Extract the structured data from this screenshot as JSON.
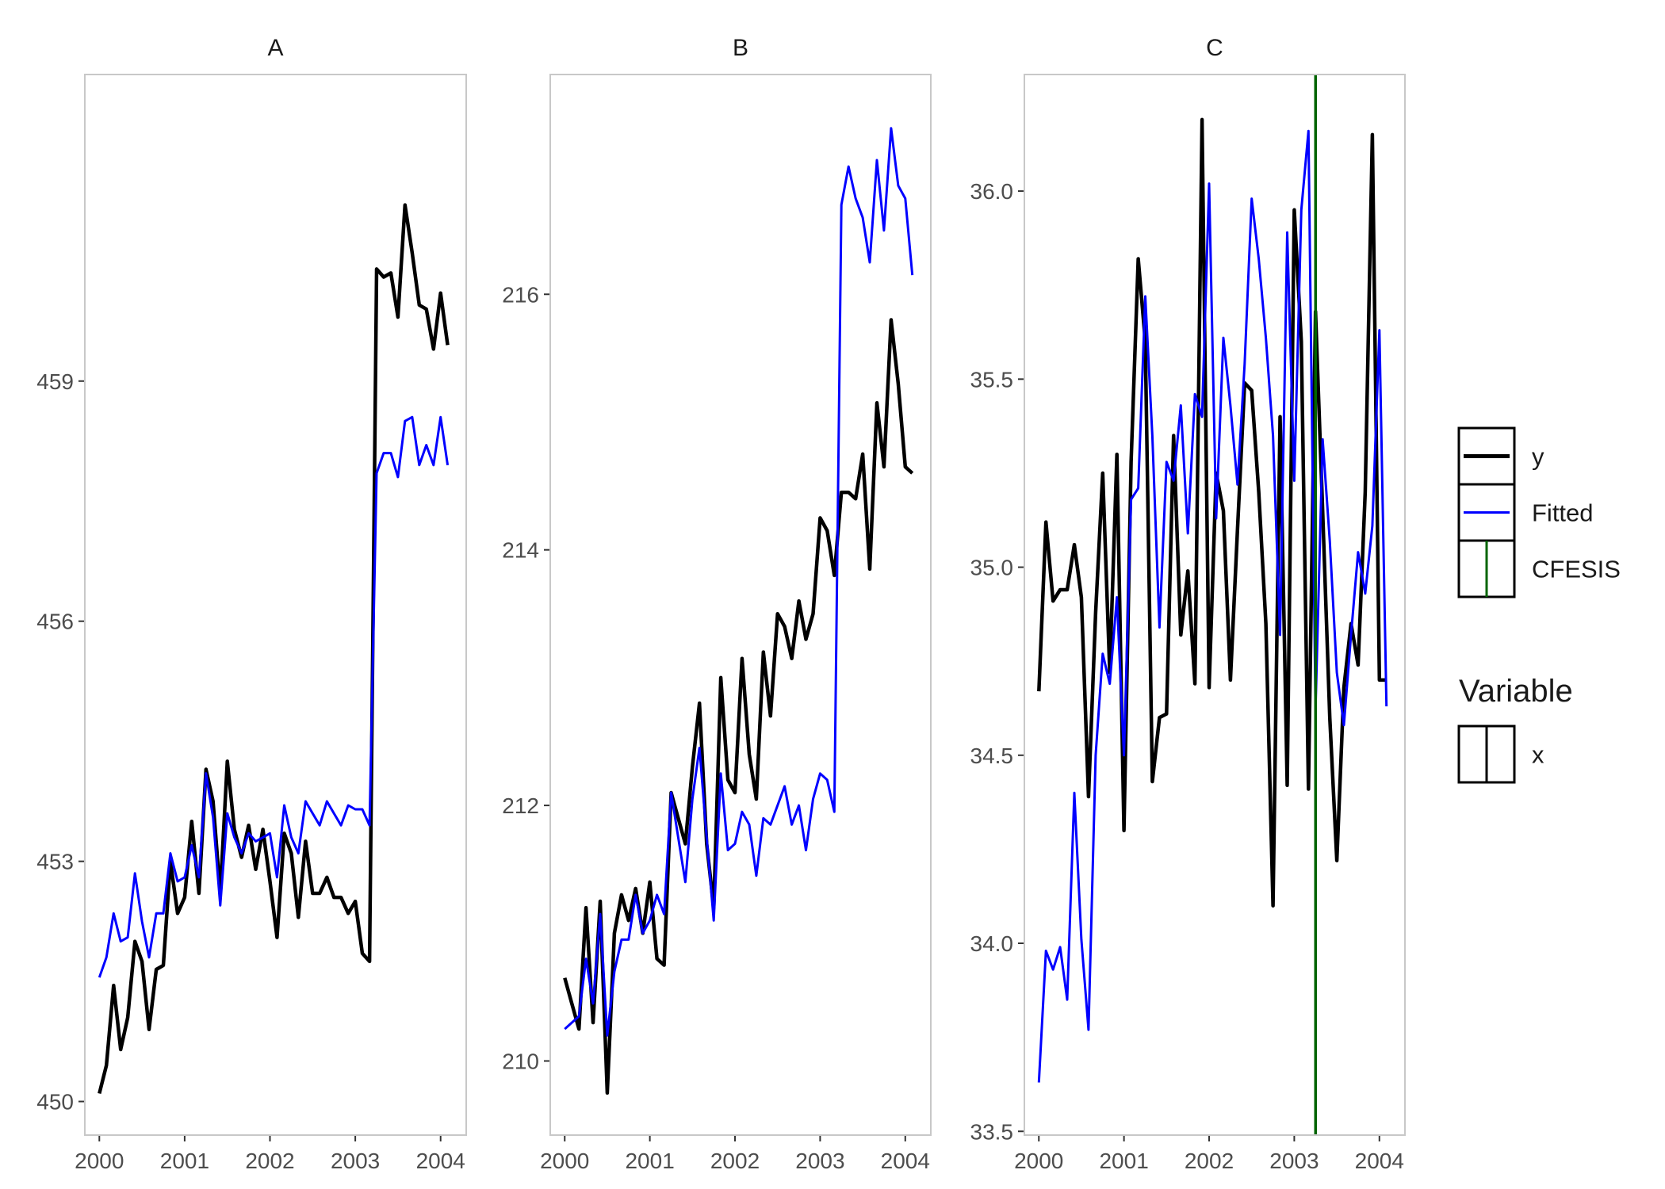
{
  "chart_data": [
    {
      "type": "line",
      "title": "A",
      "xlabel": "",
      "ylabel": "",
      "x_ticks": [
        "2000",
        "2001",
        "2002",
        "2003",
        "2004"
      ],
      "y_ticks": [
        "450",
        "453",
        "456",
        "459"
      ],
      "xlim": [
        1999.83,
        2004.3
      ],
      "ylim": [
        449.58,
        462.83
      ],
      "x": [
        2000.0,
        2000.083,
        2000.167,
        2000.25,
        2000.333,
        2000.417,
        2000.5,
        2000.583,
        2000.667,
        2000.75,
        2000.833,
        2000.917,
        2001.0,
        2001.083,
        2001.167,
        2001.25,
        2001.333,
        2001.417,
        2001.5,
        2001.583,
        2001.667,
        2001.75,
        2001.833,
        2001.917,
        2002.0,
        2002.083,
        2002.167,
        2002.25,
        2002.333,
        2002.417,
        2002.5,
        2002.583,
        2002.667,
        2002.75,
        2002.833,
        2002.917,
        2003.0,
        2003.083,
        2003.167,
        2003.25,
        2003.333,
        2003.417,
        2003.5,
        2003.583,
        2003.667,
        2003.75,
        2003.833,
        2003.917,
        2004.0,
        2004.083
      ],
      "series": [
        {
          "name": "y",
          "color": "#000000",
          "values": [
            450.1,
            450.45,
            451.45,
            450.65,
            451.05,
            452.0,
            451.75,
            450.9,
            451.65,
            451.7,
            453.0,
            452.35,
            452.55,
            453.5,
            452.6,
            454.15,
            453.75,
            452.6,
            454.25,
            453.4,
            453.05,
            453.45,
            452.9,
            453.4,
            452.75,
            452.05,
            453.35,
            453.1,
            452.3,
            453.25,
            452.6,
            452.6,
            452.8,
            452.55,
            452.55,
            452.35,
            452.5,
            451.85,
            451.75,
            460.4,
            460.3,
            460.35,
            459.8,
            461.2,
            460.6,
            459.95,
            459.9,
            459.4,
            460.1,
            459.45
          ]
        },
        {
          "name": "Fitted",
          "color": "#0000ff",
          "values": [
            451.55,
            451.8,
            452.35,
            452.0,
            452.05,
            452.85,
            452.25,
            451.8,
            452.35,
            452.35,
            453.1,
            452.75,
            452.8,
            453.2,
            452.8,
            454.1,
            453.55,
            452.45,
            453.6,
            453.3,
            453.1,
            453.35,
            453.25,
            453.3,
            453.35,
            452.8,
            453.7,
            453.3,
            453.1,
            453.75,
            453.6,
            453.45,
            453.75,
            453.6,
            453.45,
            453.7,
            453.65,
            453.65,
            453.45,
            457.85,
            458.1,
            458.1,
            457.8,
            458.5,
            458.55,
            457.95,
            458.2,
            457.95,
            458.55,
            457.95
          ]
        }
      ]
    },
    {
      "type": "line",
      "title": "B",
      "xlabel": "",
      "ylabel": "",
      "x_ticks": [
        "2000",
        "2001",
        "2002",
        "2003",
        "2004"
      ],
      "y_ticks": [
        "210",
        "212",
        "214",
        "216"
      ],
      "xlim": [
        1999.83,
        2004.3
      ],
      "ylim": [
        209.42,
        217.72
      ],
      "x": [
        2000.0,
        2000.083,
        2000.167,
        2000.25,
        2000.333,
        2000.417,
        2000.5,
        2000.583,
        2000.667,
        2000.75,
        2000.833,
        2000.917,
        2001.0,
        2001.083,
        2001.167,
        2001.25,
        2001.333,
        2001.417,
        2001.5,
        2001.583,
        2001.667,
        2001.75,
        2001.833,
        2001.917,
        2002.0,
        2002.083,
        2002.167,
        2002.25,
        2002.333,
        2002.417,
        2002.5,
        2002.583,
        2002.667,
        2002.75,
        2002.833,
        2002.917,
        2003.0,
        2003.083,
        2003.167,
        2003.25,
        2003.333,
        2003.417,
        2003.5,
        2003.583,
        2003.667,
        2003.75,
        2003.833,
        2003.917,
        2004.0,
        2004.083
      ],
      "series": [
        {
          "name": "y",
          "color": "#000000",
          "values": [
            210.65,
            210.45,
            210.25,
            211.2,
            210.3,
            211.25,
            209.75,
            211.0,
            211.3,
            211.1,
            211.35,
            211.0,
            211.4,
            210.8,
            210.75,
            212.1,
            211.9,
            211.7,
            212.3,
            212.8,
            211.7,
            211.2,
            213.0,
            212.2,
            212.1,
            213.15,
            212.4,
            212.05,
            213.2,
            212.7,
            213.5,
            213.4,
            213.15,
            213.6,
            213.3,
            213.5,
            214.25,
            214.15,
            213.8,
            214.45,
            214.45,
            214.4,
            214.75,
            213.85,
            215.15,
            214.65,
            215.8,
            215.3,
            214.65,
            214.6
          ]
        },
        {
          "name": "Fitted",
          "color": "#0000ff",
          "values": [
            210.25,
            210.3,
            210.35,
            210.8,
            210.45,
            211.15,
            210.2,
            210.7,
            210.95,
            210.95,
            211.3,
            211.0,
            211.1,
            211.3,
            211.15,
            212.1,
            211.75,
            211.4,
            212.05,
            212.45,
            211.75,
            211.1,
            212.25,
            211.65,
            211.7,
            211.95,
            211.85,
            211.45,
            211.9,
            211.85,
            212.0,
            212.15,
            211.85,
            212.0,
            211.65,
            212.05,
            212.25,
            212.2,
            211.95,
            216.7,
            217.0,
            216.75,
            216.6,
            216.25,
            217.05,
            216.5,
            217.3,
            216.85,
            216.75,
            216.15
          ]
        }
      ]
    },
    {
      "type": "line",
      "title": "C",
      "xlabel": "",
      "ylabel": "",
      "x_ticks": [
        "2000",
        "2001",
        "2002",
        "2003",
        "2004"
      ],
      "y_ticks": [
        "33.5",
        "34.0",
        "34.5",
        "35.0",
        "35.5",
        "36.0"
      ],
      "xlim": [
        1999.83,
        2004.3
      ],
      "ylim": [
        33.49,
        36.31
      ],
      "x": [
        2000.0,
        2000.083,
        2000.167,
        2000.25,
        2000.333,
        2000.417,
        2000.5,
        2000.583,
        2000.667,
        2000.75,
        2000.833,
        2000.917,
        2001.0,
        2001.083,
        2001.167,
        2001.25,
        2001.333,
        2001.417,
        2001.5,
        2001.583,
        2001.667,
        2001.75,
        2001.833,
        2001.917,
        2002.0,
        2002.083,
        2002.167,
        2002.25,
        2002.333,
        2002.417,
        2002.5,
        2002.583,
        2002.667,
        2002.75,
        2002.833,
        2002.917,
        2003.0,
        2003.083,
        2003.167,
        2003.25,
        2003.333,
        2003.417,
        2003.5,
        2003.583,
        2003.667,
        2003.75,
        2003.833,
        2003.917,
        2004.0,
        2004.083
      ],
      "series": [
        {
          "name": "y",
          "color": "#000000",
          "values": [
            34.67,
            35.12,
            34.91,
            34.94,
            34.94,
            35.06,
            34.92,
            34.39,
            34.88,
            35.25,
            34.72,
            35.3,
            34.3,
            35.28,
            35.82,
            35.6,
            34.43,
            34.6,
            34.61,
            35.35,
            34.82,
            34.99,
            34.69,
            36.19,
            34.68,
            35.25,
            35.15,
            34.7,
            35.1,
            35.49,
            35.47,
            35.2,
            34.85,
            34.1,
            35.4,
            34.42,
            35.95,
            35.6,
            34.41,
            35.68,
            35.15,
            34.6,
            34.22,
            34.68,
            34.85,
            34.74,
            35.2,
            36.15,
            34.7,
            34.7
          ]
        },
        {
          "name": "Fitted",
          "color": "#0000ff",
          "values": [
            33.63,
            33.98,
            33.93,
            33.99,
            33.85,
            34.4,
            34.01,
            33.77,
            34.5,
            34.77,
            34.69,
            34.92,
            34.5,
            35.18,
            35.21,
            35.72,
            35.35,
            34.84,
            35.28,
            35.23,
            35.43,
            35.09,
            35.46,
            35.4,
            36.02,
            35.13,
            35.61,
            35.43,
            35.22,
            35.54,
            35.98,
            35.82,
            35.61,
            35.35,
            34.82,
            35.89,
            35.23,
            35.95,
            36.16,
            34.62,
            35.34,
            35.07,
            34.72,
            34.58,
            34.82,
            35.04,
            34.93,
            35.11,
            35.63,
            34.63
          ]
        }
      ],
      "vline": {
        "label": "CFESIS",
        "x": 2003.25,
        "color": "#006400"
      }
    }
  ],
  "legend": {
    "items": [
      {
        "label": "y",
        "color": "#000000",
        "kind": "line-thick"
      },
      {
        "label": "Fitted",
        "color": "#0000ff",
        "kind": "line-thin"
      },
      {
        "label": "CFESIS",
        "color": "#006400",
        "kind": "vline"
      }
    ],
    "variable_title": "Variable",
    "variable_items": [
      {
        "label": "x",
        "color": "#000000",
        "kind": "vline"
      }
    ],
    "placement": "right"
  }
}
